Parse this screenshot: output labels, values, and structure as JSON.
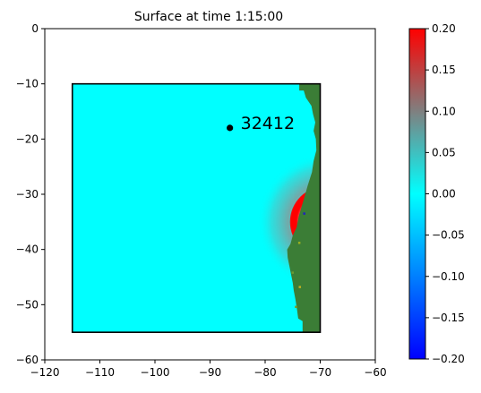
{
  "chart_data": {
    "type": "heatmap",
    "title": "Surface at time 1:15:00",
    "xlabel": "",
    "ylabel": "",
    "xlim": [
      -120,
      -60
    ],
    "ylim": [
      -60,
      0
    ],
    "xticks": [
      -120,
      -110,
      -100,
      -90,
      -80,
      -70,
      -60
    ],
    "yticks": [
      0,
      -10,
      -20,
      -30,
      -40,
      -50,
      -60
    ],
    "grid": false,
    "domain_box": {
      "x": [
        -115,
        -70
      ],
      "y": [
        -55,
        -10
      ]
    },
    "wave": {
      "center": [
        -69,
        -35
      ],
      "crest_radius": 6.5,
      "trough_radius": 4
    },
    "gauge": {
      "label": "32412",
      "x": -86.4,
      "y": -17.98
    },
    "colorbar": {
      "min": -0.2,
      "max": 0.2,
      "ticks": [
        "0.20",
        "0.15",
        "0.10",
        "0.05",
        "0.00",
        "−0.05",
        "−0.10",
        "−0.15",
        "−0.20"
      ],
      "colors": [
        "#0000ff",
        "#00ffff",
        "#ff0000"
      ]
    },
    "colors": {
      "water": "#00ffff",
      "land": "#3b7d36",
      "crest": "#ff0000",
      "trough": "#0000ff"
    }
  }
}
